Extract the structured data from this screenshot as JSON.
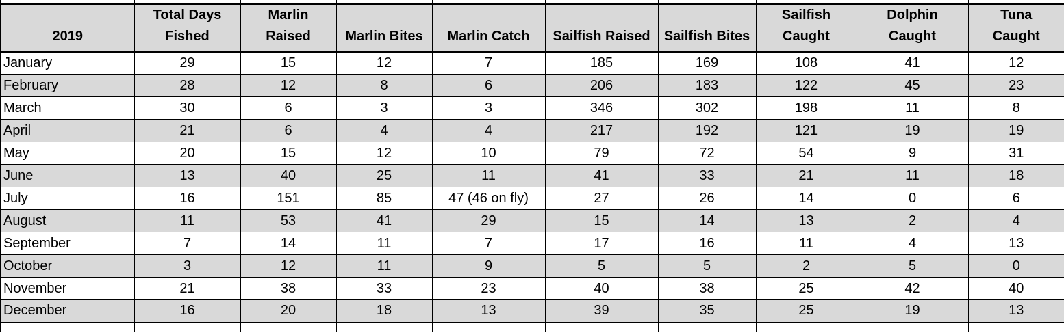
{
  "table": {
    "columns": [
      {
        "id": "month",
        "header_lines": [
          "2019"
        ]
      },
      {
        "id": "total-days-fished",
        "header_lines": [
          "Total Days",
          "Fished"
        ]
      },
      {
        "id": "marlin-raised",
        "header_lines": [
          "Marlin",
          "Raised"
        ]
      },
      {
        "id": "marlin-bites",
        "header_lines": [
          "Marlin Bites"
        ]
      },
      {
        "id": "marlin-catch",
        "header_lines": [
          "Marlin Catch"
        ]
      },
      {
        "id": "sailfish-raised",
        "header_lines": [
          "Sailfish Raised"
        ]
      },
      {
        "id": "sailfish-bites",
        "header_lines": [
          "Sailfish Bites"
        ]
      },
      {
        "id": "sailfish-caught",
        "header_lines": [
          "Sailfish",
          "Caught"
        ]
      },
      {
        "id": "dolphin-caught",
        "header_lines": [
          "Dolphin",
          "Caught"
        ]
      },
      {
        "id": "tuna-caught",
        "header_lines": [
          "Tuna",
          "Caught"
        ]
      }
    ],
    "rows": [
      {
        "month": "January",
        "values": [
          "29",
          "15",
          "12",
          "7",
          "185",
          "169",
          "108",
          "41",
          "12"
        ]
      },
      {
        "month": "February",
        "values": [
          "28",
          "12",
          "8",
          "6",
          "206",
          "183",
          "122",
          "45",
          "23"
        ]
      },
      {
        "month": "March",
        "values": [
          "30",
          "6",
          "3",
          "3",
          "346",
          "302",
          "198",
          "11",
          "8"
        ]
      },
      {
        "month": "April",
        "values": [
          "21",
          "6",
          "4",
          "4",
          "217",
          "192",
          "121",
          "19",
          "19"
        ]
      },
      {
        "month": "May",
        "values": [
          "20",
          "15",
          "12",
          "10",
          "79",
          "72",
          "54",
          "9",
          "31"
        ]
      },
      {
        "month": "June",
        "values": [
          "13",
          "40",
          "25",
          "11",
          "41",
          "33",
          "21",
          "11",
          "18"
        ]
      },
      {
        "month": "July",
        "values": [
          "16",
          "151",
          "85",
          "47 (46 on fly)",
          "27",
          "26",
          "14",
          "0",
          "6"
        ]
      },
      {
        "month": "August",
        "values": [
          "11",
          "53",
          "41",
          "29",
          "15",
          "14",
          "13",
          "2",
          "4"
        ]
      },
      {
        "month": "September",
        "values": [
          "7",
          "14",
          "11",
          "7",
          "17",
          "16",
          "11",
          "4",
          "13"
        ]
      },
      {
        "month": "October",
        "values": [
          "3",
          "12",
          "11",
          "9",
          "5",
          "5",
          "2",
          "5",
          "0"
        ]
      },
      {
        "month": "November",
        "values": [
          "21",
          "38",
          "33",
          "23",
          "40",
          "38",
          "25",
          "42",
          "40"
        ]
      },
      {
        "month": "December",
        "values": [
          "16",
          "20",
          "18",
          "13",
          "39",
          "35",
          "25",
          "19",
          "13"
        ]
      }
    ],
    "colors": {
      "header_bg": "#d9d9d9",
      "band_row_bg": "#d9d9d9",
      "plain_row_bg": "#ffffff",
      "border": "#000000",
      "text": "#000000"
    }
  }
}
